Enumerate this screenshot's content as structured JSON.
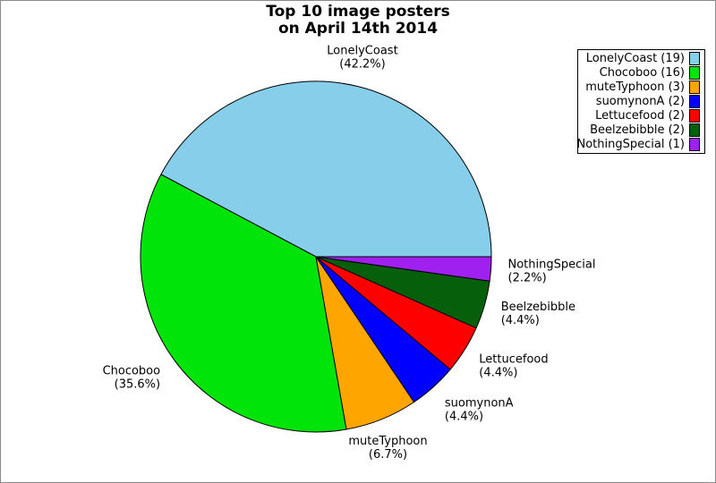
{
  "page": {
    "background": "#ffffff",
    "border_color": "#8a8a8a"
  },
  "title": {
    "line1": "Top 10 image posters",
    "line2": "on April 14th 2014"
  },
  "chart_data": {
    "type": "pie",
    "title": "Top 10 image posters on April 14th 2014",
    "total": 45,
    "start_angle_deg": 0,
    "direction": "counterclockwise",
    "slices": [
      {
        "name": "LonelyCoast",
        "count": 19,
        "pct": 42.2,
        "pct_label": "(42.2%)",
        "color": "#87CEEB"
      },
      {
        "name": "Chocoboo",
        "count": 16,
        "pct": 35.6,
        "pct_label": "(35.6%)",
        "color": "#00E409"
      },
      {
        "name": "muteTyphoon",
        "count": 3,
        "pct": 6.7,
        "pct_label": "(6.7%)",
        "color": "#FFA500"
      },
      {
        "name": "suomynonA",
        "count": 2,
        "pct": 4.4,
        "pct_label": "(4.4%)",
        "color": "#0000FF"
      },
      {
        "name": "Lettucefood",
        "count": 2,
        "pct": 4.4,
        "pct_label": "(4.4%)",
        "color": "#FF0000"
      },
      {
        "name": "Beelzebibble",
        "count": 2,
        "pct": 4.4,
        "pct_label": "(4.4%)",
        "color": "#06600B"
      },
      {
        "name": "NothingSpecial",
        "count": 1,
        "pct": 2.2,
        "pct_label": "(2.2%)",
        "color": "#A020F0"
      }
    ],
    "legend": {
      "position": "top-right",
      "entries": [
        {
          "label": "LonelyCoast (19)",
          "color": "#87CEEB"
        },
        {
          "label": "Chocoboo (16)",
          "color": "#00E409"
        },
        {
          "label": "muteTyphoon (3)",
          "color": "#FFA500"
        },
        {
          "label": "suomynonA (2)",
          "color": "#0000FF"
        },
        {
          "label": "Lettucefood (2)",
          "color": "#FF0000"
        },
        {
          "label": "Beelzebibble (2)",
          "color": "#06600B"
        },
        {
          "label": "NothingSpecial (1)",
          "color": "#A020F0"
        }
      ]
    }
  }
}
